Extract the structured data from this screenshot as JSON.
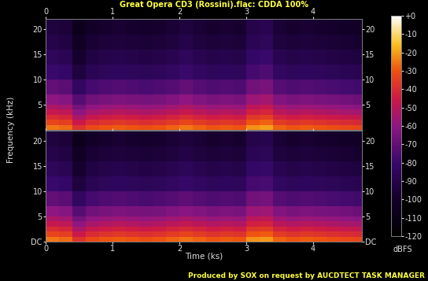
{
  "title": "Great Opera CD3 (Rossini).flac: CDDA 100%",
  "xlabel": "Time (ks)",
  "ylabel": "Frequency (kHz)",
  "footer": "Produced by SOX on request by AUCDTECT TASK MANAGER",
  "colorbar": {
    "label": "dBFS",
    "lim": [
      -120,
      0
    ],
    "ticks": [
      {
        "value": 0,
        "label": "+0"
      },
      -10,
      -20,
      -30,
      -40,
      -50,
      -60,
      -70,
      -80,
      -90,
      -100,
      -110,
      -120
    ]
  },
  "chart_data": [
    {
      "type": "heatmap",
      "time_edges": [
        0,
        0.2,
        0.4,
        0.6,
        0.8,
        1.0,
        1.2,
        1.4,
        1.6,
        1.8,
        2.0,
        2.2,
        2.4,
        2.6,
        2.8,
        3.0,
        3.2,
        3.4,
        3.6,
        3.8,
        4.0,
        4.2,
        4.4,
        4.6,
        4.73
      ],
      "freq_edges": [
        0,
        1,
        2,
        3,
        4,
        5,
        7,
        10,
        13,
        16,
        19,
        22.05
      ],
      "cells": [
        [
          -25,
          -27,
          -38,
          -32,
          -30,
          -29,
          -30,
          -31,
          -30,
          -28,
          -25,
          -28,
          -30,
          -29,
          -30,
          -22,
          -20,
          -28,
          -30,
          -29,
          -30,
          -31,
          -32,
          -33
        ],
        [
          -33,
          -35,
          -46,
          -40,
          -38,
          -37,
          -38,
          -39,
          -38,
          -36,
          -33,
          -36,
          -38,
          -37,
          -38,
          -30,
          -28,
          -36,
          -38,
          -37,
          -38,
          -39,
          -40,
          -41
        ],
        [
          -40,
          -42,
          -53,
          -47,
          -45,
          -44,
          -45,
          -46,
          -45,
          -43,
          -40,
          -43,
          -45,
          -44,
          -45,
          -37,
          -35,
          -43,
          -45,
          -44,
          -45,
          -46,
          -47,
          -48
        ],
        [
          -47,
          -49,
          -60,
          -54,
          -52,
          -51,
          -52,
          -53,
          -52,
          -50,
          -47,
          -50,
          -52,
          -51,
          -52,
          -44,
          -42,
          -50,
          -52,
          -51,
          -52,
          -53,
          -54,
          -55
        ],
        [
          -53,
          -55,
          -66,
          -60,
          -58,
          -57,
          -58,
          -59,
          -58,
          -56,
          -53,
          -56,
          -58,
          -57,
          -58,
          -50,
          -48,
          -56,
          -58,
          -57,
          -58,
          -59,
          -60,
          -61
        ],
        [
          -60,
          -62,
          -73,
          -67,
          -65,
          -64,
          -65,
          -66,
          -65,
          -63,
          -60,
          -63,
          -65,
          -64,
          -65,
          -57,
          -55,
          -63,
          -65,
          -64,
          -65,
          -66,
          -67,
          -68
        ],
        [
          -70,
          -72,
          -83,
          -77,
          -75,
          -74,
          -75,
          -76,
          -75,
          -73,
          -70,
          -73,
          -75,
          -74,
          -75,
          -67,
          -65,
          -73,
          -75,
          -74,
          -75,
          -76,
          -77,
          -78
        ],
        [
          -80,
          -82,
          -93,
          -87,
          -85,
          -84,
          -85,
          -86,
          -85,
          -83,
          -80,
          -83,
          -85,
          -84,
          -85,
          -77,
          -75,
          -83,
          -85,
          -84,
          -85,
          -86,
          -87,
          -88
        ],
        [
          -85,
          -87,
          -98,
          -92,
          -90,
          -89,
          -90,
          -91,
          -90,
          -88,
          -85,
          -88,
          -90,
          -89,
          -90,
          -82,
          -80,
          -88,
          -90,
          -89,
          -90,
          -91,
          -92,
          -93
        ],
        [
          -90,
          -92,
          -103,
          -97,
          -95,
          -94,
          -95,
          -96,
          -95,
          -93,
          -90,
          -93,
          -95,
          -94,
          -95,
          -87,
          -85,
          -93,
          -95,
          -94,
          -95,
          -96,
          -97,
          -98
        ],
        [
          -93,
          -95,
          -106,
          -100,
          -98,
          -97,
          -98,
          -99,
          -98,
          -96,
          -93,
          -96,
          -98,
          -97,
          -98,
          -90,
          -88,
          -96,
          -98,
          -97,
          -98,
          -99,
          -100,
          -101
        ]
      ],
      "xlim": [
        0,
        4.73
      ],
      "ylim": [
        0,
        22.05
      ],
      "xticks": [
        0,
        1,
        2,
        3,
        4
      ],
      "yticks": [
        5,
        10,
        15,
        20
      ]
    },
    {
      "type": "heatmap",
      "time_edges": [
        0,
        0.2,
        0.4,
        0.6,
        0.8,
        1.0,
        1.2,
        1.4,
        1.6,
        1.8,
        2.0,
        2.2,
        2.4,
        2.6,
        2.8,
        3.0,
        3.2,
        3.4,
        3.6,
        3.8,
        4.0,
        4.2,
        4.4,
        4.6,
        4.73
      ],
      "freq_edges": [
        0,
        1,
        2,
        3,
        4,
        5,
        7,
        10,
        13,
        16,
        19,
        22.05
      ],
      "cells": [
        [
          -25,
          -27,
          -38,
          -32,
          -30,
          -29,
          -30,
          -31,
          -30,
          -28,
          -26,
          -28,
          -30,
          -29,
          -30,
          -22,
          -21,
          -28,
          -30,
          -29,
          -30,
          -31,
          -32,
          -33
        ],
        [
          -33,
          -35,
          -46,
          -40,
          -38,
          -37,
          -38,
          -39,
          -38,
          -36,
          -34,
          -36,
          -38,
          -37,
          -38,
          -30,
          -29,
          -36,
          -38,
          -37,
          -38,
          -39,
          -40,
          -41
        ],
        [
          -40,
          -42,
          -53,
          -47,
          -45,
          -44,
          -45,
          -46,
          -45,
          -43,
          -41,
          -43,
          -45,
          -44,
          -45,
          -37,
          -36,
          -43,
          -45,
          -44,
          -45,
          -46,
          -47,
          -48
        ],
        [
          -47,
          -49,
          -60,
          -54,
          -52,
          -51,
          -52,
          -53,
          -52,
          -50,
          -48,
          -50,
          -52,
          -51,
          -52,
          -44,
          -43,
          -50,
          -52,
          -51,
          -52,
          -53,
          -54,
          -55
        ],
        [
          -53,
          -55,
          -66,
          -60,
          -58,
          -57,
          -58,
          -59,
          -58,
          -56,
          -54,
          -56,
          -58,
          -57,
          -58,
          -50,
          -49,
          -56,
          -58,
          -57,
          -58,
          -59,
          -60,
          -61
        ],
        [
          -60,
          -62,
          -73,
          -67,
          -65,
          -64,
          -65,
          -66,
          -65,
          -63,
          -61,
          -63,
          -65,
          -64,
          -65,
          -57,
          -56,
          -63,
          -65,
          -64,
          -65,
          -66,
          -67,
          -68
        ],
        [
          -70,
          -72,
          -83,
          -77,
          -75,
          -74,
          -75,
          -76,
          -75,
          -73,
          -71,
          -73,
          -75,
          -74,
          -75,
          -67,
          -66,
          -73,
          -75,
          -74,
          -75,
          -76,
          -77,
          -78
        ],
        [
          -80,
          -82,
          -93,
          -87,
          -85,
          -84,
          -85,
          -86,
          -85,
          -83,
          -81,
          -83,
          -85,
          -84,
          -85,
          -77,
          -76,
          -83,
          -85,
          -84,
          -85,
          -86,
          -87,
          -88
        ],
        [
          -85,
          -87,
          -98,
          -92,
          -90,
          -89,
          -90,
          -91,
          -90,
          -88,
          -86,
          -88,
          -90,
          -89,
          -90,
          -82,
          -81,
          -88,
          -90,
          -89,
          -90,
          -91,
          -92,
          -93
        ],
        [
          -90,
          -92,
          -103,
          -97,
          -95,
          -94,
          -95,
          -96,
          -95,
          -93,
          -91,
          -93,
          -95,
          -94,
          -95,
          -87,
          -86,
          -93,
          -95,
          -94,
          -95,
          -96,
          -97,
          -98
        ],
        [
          -93,
          -95,
          -106,
          -100,
          -98,
          -97,
          -98,
          -99,
          -98,
          -96,
          -94,
          -96,
          -98,
          -97,
          -98,
          -90,
          -89,
          -96,
          -98,
          -97,
          -98,
          -99,
          -100,
          -101
        ]
      ],
      "xlim": [
        0,
        4.73
      ],
      "ylim": [
        0,
        22.05
      ],
      "xticks": [
        0,
        1,
        2,
        3,
        4
      ],
      "yticks": [
        {
          "value": 0,
          "label": "DC"
        },
        5,
        10,
        15,
        20
      ]
    }
  ]
}
